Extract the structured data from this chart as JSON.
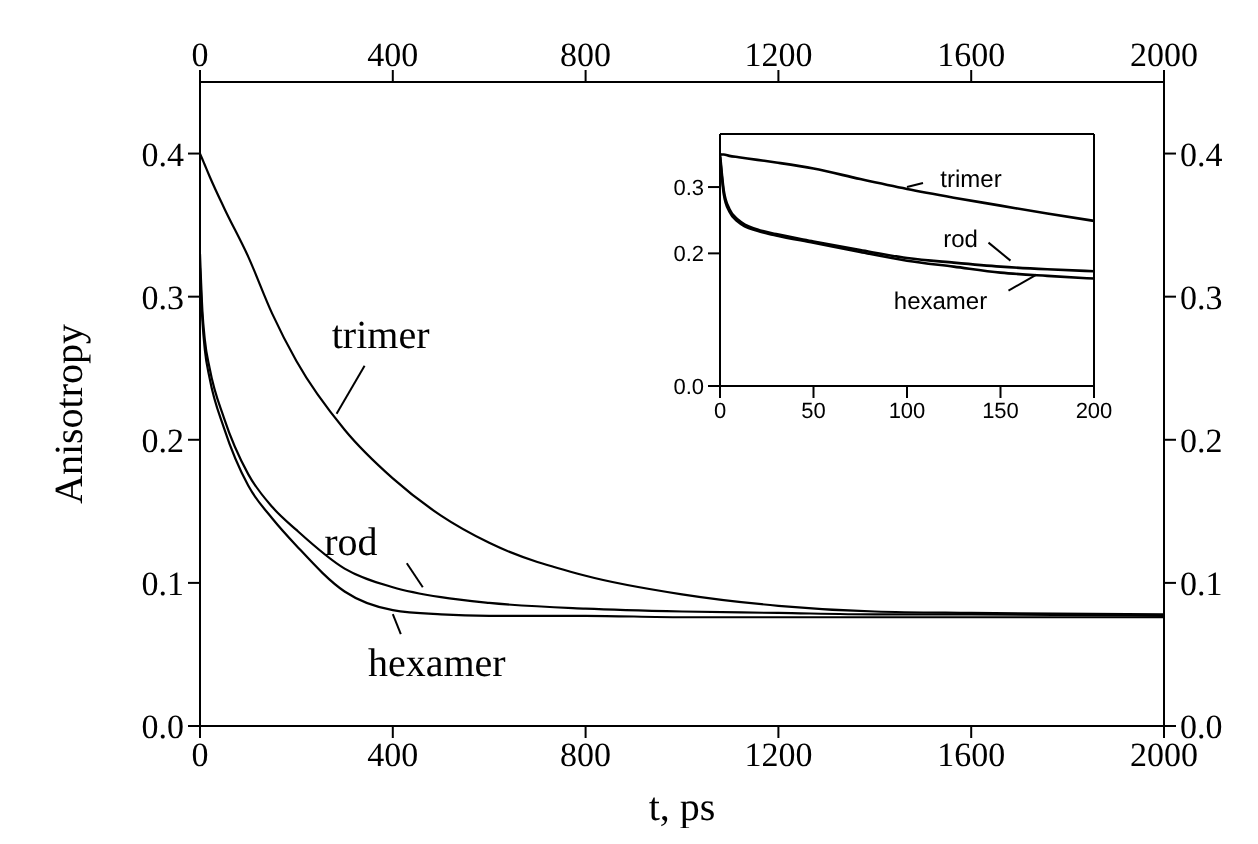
{
  "chart_data": [
    {
      "type": "line",
      "xlabel": "t, ps",
      "ylabel": "Anisotropy",
      "x": [
        0,
        5,
        10,
        20,
        50,
        100,
        150,
        200,
        300,
        400,
        500,
        600,
        800,
        1000,
        1200,
        1400,
        1600,
        2000
      ],
      "series": [
        {
          "name": "trimer",
          "color": "#000000",
          "values": [
            0.4,
            0.396,
            0.392,
            0.384,
            0.362,
            0.328,
            0.288,
            0.255,
            0.207,
            0.173,
            0.147,
            0.128,
            0.105,
            0.092,
            0.084,
            0.08,
            0.079,
            0.078
          ]
        },
        {
          "name": "rod",
          "color": "#000000",
          "values": [
            0.33,
            0.29,
            0.27,
            0.25,
            0.215,
            0.176,
            0.153,
            0.137,
            0.11,
            0.097,
            0.09,
            0.086,
            0.082,
            0.08,
            0.079,
            0.078,
            0.078,
            0.077
          ]
        },
        {
          "name": "hexamer",
          "color": "#000000",
          "values": [
            0.32,
            0.283,
            0.263,
            0.243,
            0.208,
            0.168,
            0.145,
            0.126,
            0.094,
            0.081,
            0.078,
            0.077,
            0.077,
            0.076,
            0.076,
            0.076,
            0.076,
            0.076
          ]
        }
      ],
      "xlim": [
        0,
        2000
      ],
      "xticks": [
        0,
        400,
        800,
        1200,
        1600,
        2000
      ],
      "x2lim": [
        0,
        2000
      ],
      "x2ticks": [
        0,
        400,
        800,
        1200,
        1600,
        2000
      ],
      "ylim": [
        0,
        0.45
      ],
      "yticks": [
        {
          "value": 0,
          "label": "0.0"
        },
        0.1,
        0.2,
        0.3,
        0.4
      ],
      "y2lim": [
        0,
        0.45
      ],
      "y2ticks": [
        {
          "value": 0,
          "label": "0.0"
        },
        0.1,
        0.2,
        0.3,
        0.4
      ]
    },
    {
      "type": "line",
      "x": [
        0,
        1,
        2,
        5,
        10,
        20,
        30,
        50,
        75,
        100,
        125,
        150,
        175,
        200
      ],
      "series": [
        {
          "name": "trimer",
          "color": "#000000",
          "values": [
            0.35,
            0.349,
            0.349,
            0.347,
            0.345,
            0.341,
            0.337,
            0.328,
            0.312,
            0.297,
            0.284,
            0.272,
            0.26,
            0.249
          ]
        },
        {
          "name": "rod",
          "color": "#000000",
          "values": [
            0.35,
            0.32,
            0.295,
            0.267,
            0.25,
            0.236,
            0.229,
            0.218,
            0.205,
            0.193,
            0.186,
            0.18,
            0.176,
            0.173
          ]
        },
        {
          "name": "hexamer",
          "color": "#000000",
          "values": [
            0.345,
            0.315,
            0.29,
            0.263,
            0.247,
            0.234,
            0.227,
            0.216,
            0.202,
            0.189,
            0.18,
            0.171,
            0.166,
            0.162
          ]
        }
      ],
      "xlim": [
        0,
        200
      ],
      "xticks": [
        0,
        50,
        100,
        150,
        200
      ],
      "ylim": [
        0,
        0.38
      ],
      "yticks": [
        {
          "value": 0,
          "label": "0.0"
        },
        0.2,
        0.3
      ]
    }
  ]
}
